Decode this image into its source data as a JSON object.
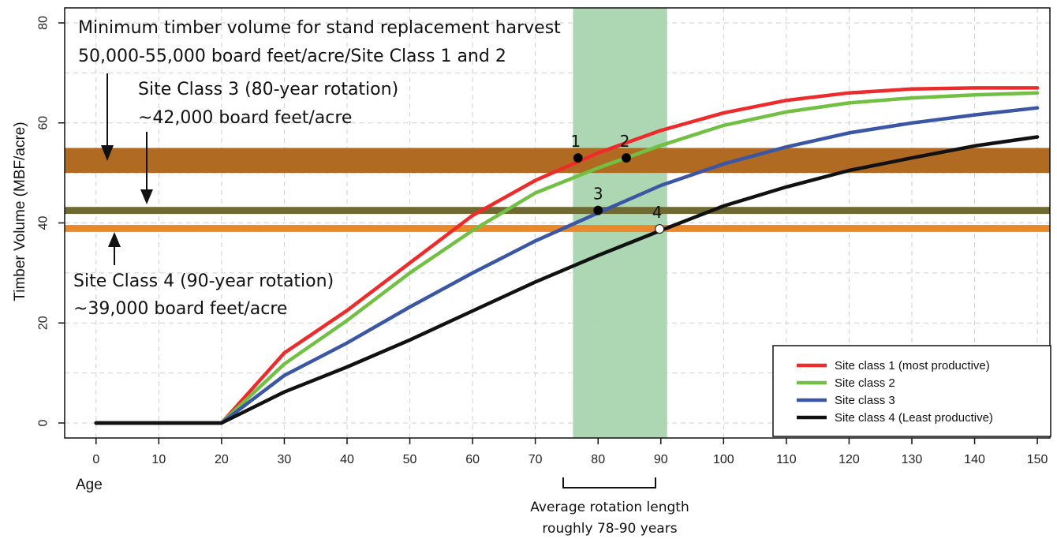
{
  "chart_data": {
    "type": "line",
    "xlabel": "Age",
    "ylabel": "Timber Volume (MBF/acre)",
    "xlim": [
      -5,
      152
    ],
    "ylim": [
      -3,
      83
    ],
    "x_ticks": [
      0,
      10,
      20,
      30,
      40,
      50,
      60,
      70,
      80,
      90,
      100,
      110,
      120,
      130,
      140,
      150
    ],
    "y_ticks": [
      0,
      20,
      40,
      60,
      80
    ],
    "grid": true,
    "legend_position": "bottom-right",
    "x": [
      0,
      20,
      30,
      40,
      50,
      60,
      70,
      80,
      90,
      100,
      110,
      120,
      130,
      140,
      150
    ],
    "series": [
      {
        "name": "Site class 1 (most productive)",
        "color": "#ee2b2b",
        "values": [
          0,
          0,
          14,
          22.5,
          32,
          41.5,
          48.5,
          54,
          58.5,
          62,
          64.5,
          66,
          66.8,
          67,
          67
        ]
      },
      {
        "name": "Site class 2",
        "color": "#72c043",
        "values": [
          0,
          0,
          11.8,
          20.5,
          30,
          38.5,
          46,
          51,
          55.5,
          59.5,
          62.2,
          64,
          65,
          65.6,
          66
        ]
      },
      {
        "name": "Site class 3",
        "color": "#3a56a5",
        "values": [
          0,
          0,
          9.5,
          16,
          23.2,
          30,
          36.4,
          42,
          47.5,
          51.8,
          55.2,
          58,
          60,
          61.6,
          63
        ]
      },
      {
        "name": "Site class 4 (Least productive)",
        "color": "#111111",
        "values": [
          0,
          0,
          6.2,
          11.2,
          16.6,
          22.4,
          28.2,
          33.5,
          38.5,
          43.4,
          47.2,
          50.5,
          53,
          55.4,
          57.2
        ]
      }
    ],
    "bands": [
      {
        "name": "Site Class 1 and 2 minimum",
        "from": 50,
        "to": 55,
        "color": "#b06a22"
      },
      {
        "name": "Site Class 3",
        "from": 41.8,
        "to": 43.2,
        "color": "#6e6a32"
      },
      {
        "name": "Site Class 4",
        "from": 38.2,
        "to": 39.6,
        "color": "#e9892a"
      }
    ],
    "rotation_band": {
      "from": 76,
      "to": 91,
      "color": "#a9d5ae"
    },
    "points": [
      {
        "label": "1",
        "x": 76.8,
        "y": 53,
        "fill": "#000000"
      },
      {
        "label": "2",
        "x": 84.5,
        "y": 53,
        "fill": "#000000"
      },
      {
        "label": "3",
        "x": 80,
        "y": 42.5,
        "fill": "#000000"
      },
      {
        "label": "4",
        "x": 89.8,
        "y": 38.8,
        "fill": "#ffffff"
      }
    ]
  },
  "annotations": {
    "harvest_title": "Minimum timber volume for stand replacement harvest",
    "harvest_sub": "50,000-55,000 board feet/acre/Site Class 1 and 2",
    "sc3_title": "Site Class 3 (80-year rotation)",
    "sc3_sub": "~42,000 board feet/acre",
    "sc4_title": "Site Class 4 (90-year rotation)",
    "sc4_sub": "~39,000 board feet/acre",
    "rotation_line1": "Average rotation length",
    "rotation_line2": "roughly 78-90 years"
  }
}
